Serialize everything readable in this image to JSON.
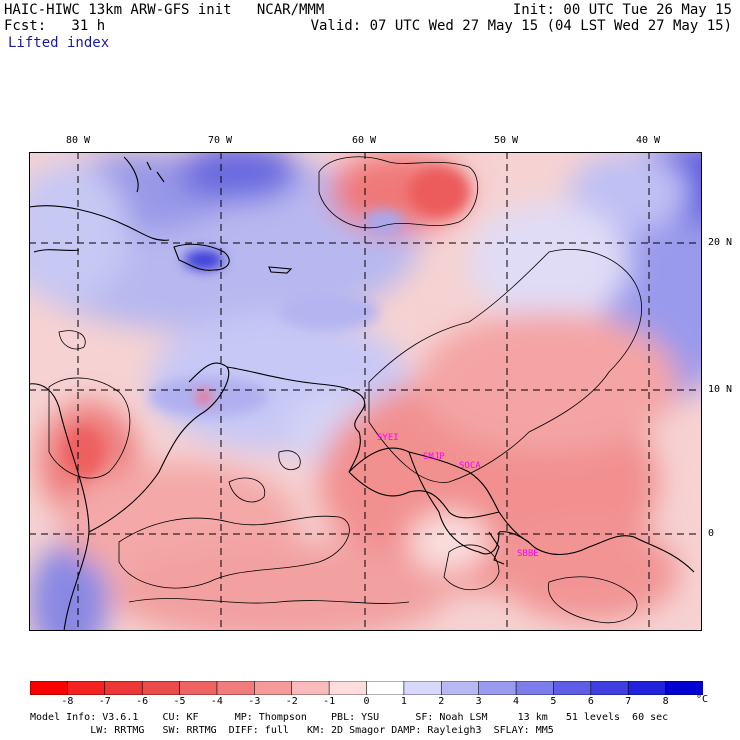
{
  "header": {
    "line1_left": "HAIC-HIWC 13km ARW-GFS init   NCAR/MMM",
    "line1_right": "Init: 00 UTC Tue 26 May 15",
    "line2_left": "Fcst:   31 h",
    "line2_right": "Valid: 07 UTC Wed 27 May 15 (04 LST Wed 27 May 15)",
    "line3_left": "Lifted index"
  },
  "map": {
    "lon_labels": [
      "80 W",
      "70 W",
      "60 W",
      "50 W",
      "40 W"
    ],
    "lat_labels": [
      "20 N",
      "10 N",
      "0"
    ],
    "stations": [
      "SYEI",
      "SMJP",
      "SOCA",
      "SBBE"
    ],
    "station_color": "#ff00ff"
  },
  "colorbar": {
    "ticks": [
      "-8",
      "-7",
      "-6",
      "-5",
      "-4",
      "-3",
      "-2",
      "-1",
      "0",
      "1",
      "2",
      "3",
      "4",
      "5",
      "6",
      "7",
      "8"
    ],
    "unit": "°C",
    "colors": [
      "#ff0000",
      "#f52222",
      "#ee3838",
      "#ea4c4c",
      "#ee6464",
      "#f07c7c",
      "#f49a9a",
      "#f8baba",
      "#fcdcdc",
      "#ffffff",
      "#d8d8fa",
      "#b8b8f4",
      "#9a9aee",
      "#7c7cea",
      "#5e5ee6",
      "#4040e2",
      "#2222dc",
      "#0000d0"
    ]
  },
  "footer": {
    "line1": "Model Info: V3.6.1    CU: KF      MP: Thompson    PBL: YSU      SF: Noah LSM     13 km   51 levels  60 sec",
    "line2": "          LW: RRTMG   SW: RRTMG  DIFF: full   KM: 2D Smagor DAMP: Rayleigh3  SFLAY: MM5"
  }
}
